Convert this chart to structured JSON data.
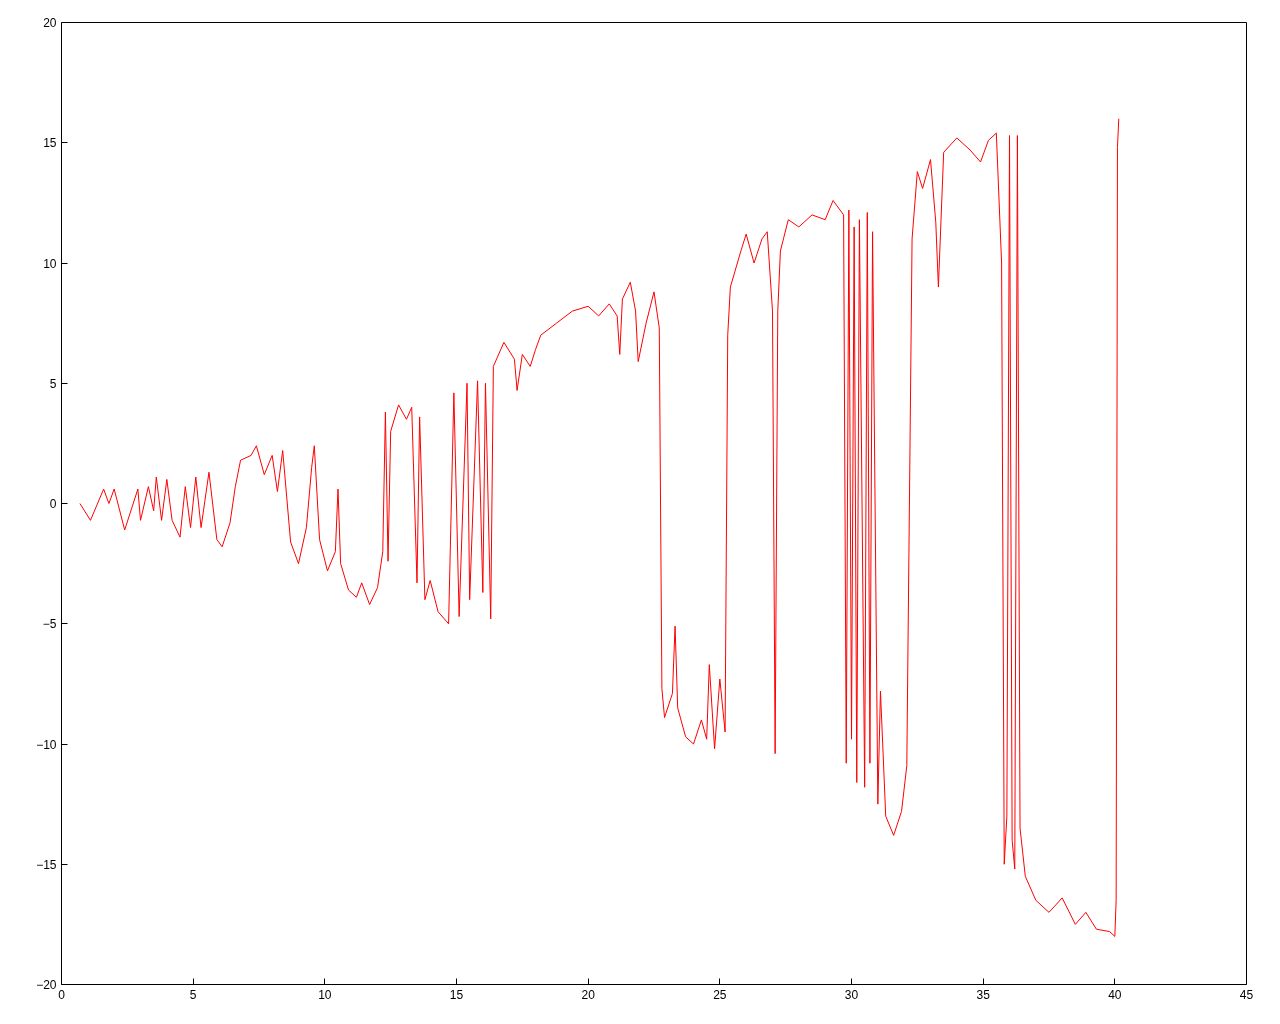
{
  "chart_data": {
    "type": "line",
    "xlim": [
      0,
      45
    ],
    "ylim": [
      -20,
      20
    ],
    "xticks": [
      0,
      5,
      10,
      15,
      20,
      25,
      30,
      35,
      40,
      45
    ],
    "yticks": [
      -20,
      -15,
      -10,
      -5,
      0,
      5,
      10,
      15,
      20
    ],
    "grid": false,
    "marker": "none",
    "line_style": "solid",
    "series": [
      {
        "color": "#ff0000",
        "x": [
          0.7,
          1.1,
          1.6,
          1.8,
          2.0,
          2.4,
          2.9,
          3.0,
          3.3,
          3.5,
          3.6,
          3.8,
          4.0,
          4.2,
          4.5,
          4.7,
          4.9,
          5.1,
          5.3,
          5.6,
          5.9,
          6.1,
          6.4,
          6.6,
          6.8,
          7.2,
          7.4,
          7.7,
          8.0,
          8.2,
          8.4,
          8.7,
          9.0,
          9.3,
          9.5,
          9.6,
          9.8,
          10.1,
          10.4,
          10.5,
          10.6,
          10.9,
          11.2,
          11.4,
          11.7,
          12.0,
          12.2,
          12.3,
          12.4,
          12.5,
          12.8,
          13.1,
          13.3,
          13.5,
          13.6,
          13.8,
          14.0,
          14.3,
          14.7,
          14.9,
          15.1,
          15.4,
          15.5,
          15.8,
          16.0,
          16.1,
          16.3,
          16.4,
          16.8,
          17.2,
          17.3,
          17.5,
          17.8,
          18.0,
          18.2,
          18.8,
          19.4,
          20.0,
          20.4,
          20.8,
          21.1,
          21.2,
          21.3,
          21.6,
          21.8,
          21.9,
          22.2,
          22.5,
          22.7,
          22.8,
          22.9,
          23.2,
          23.3,
          23.4,
          23.7,
          24.0,
          24.3,
          24.5,
          24.6,
          24.8,
          25.0,
          25.2,
          25.3,
          25.4,
          25.8,
          26.0,
          26.3,
          26.6,
          26.8,
          27.0,
          27.1,
          27.2,
          27.3,
          27.6,
          28.0,
          28.5,
          29.0,
          29.3,
          29.7,
          29.8,
          29.9,
          30.0,
          30.1,
          30.2,
          30.3,
          30.5,
          30.6,
          30.7,
          30.8,
          31.0,
          31.1,
          31.3,
          31.6,
          31.9,
          32.1,
          32.3,
          32.5,
          32.7,
          33.0,
          33.2,
          33.3,
          33.5,
          34.0,
          34.5,
          34.9,
          35.2,
          35.5,
          35.7,
          35.8,
          35.9,
          36.0,
          36.1,
          36.2,
          36.3,
          36.4,
          36.6,
          37.0,
          37.5,
          38.0,
          38.5,
          38.9,
          39.3,
          39.8,
          40.0,
          40.05,
          40.1,
          40.15
        ],
        "values": [
          0,
          -0.7,
          0.6,
          0,
          0.6,
          -1.1,
          0.6,
          -0.7,
          0.7,
          -0.3,
          1.1,
          -0.7,
          1.0,
          -0.7,
          -1.4,
          0.7,
          -1.0,
          1.1,
          -1.0,
          1.3,
          -1.5,
          -1.8,
          -0.8,
          0.7,
          1.8,
          2.0,
          2.4,
          1.2,
          2.0,
          0.5,
          2.2,
          -1.6,
          -2.5,
          -1.0,
          1.5,
          2.4,
          -1.5,
          -2.8,
          -2.0,
          0.6,
          -2.5,
          -3.6,
          -3.9,
          -3.3,
          -4.2,
          -3.5,
          -2.0,
          3.8,
          -2.4,
          3.0,
          4.1,
          3.5,
          4.0,
          -3.3,
          3.6,
          -4.0,
          -3.2,
          -4.5,
          -5.0,
          4.6,
          -4.7,
          5.0,
          -4.0,
          5.1,
          -3.7,
          5.0,
          -4.8,
          5.7,
          6.7,
          6.0,
          4.7,
          6.2,
          5.7,
          6.4,
          7.0,
          7.5,
          8.0,
          8.2,
          7.8,
          8.3,
          7.8,
          6.2,
          8.5,
          9.2,
          8.0,
          5.9,
          7.5,
          8.8,
          7.3,
          -7.7,
          -8.9,
          -7.9,
          -5.1,
          -8.5,
          -9.7,
          -10.0,
          -9.0,
          -9.8,
          -6.7,
          -10.2,
          -7.3,
          -9.5,
          7.0,
          9.0,
          10.5,
          11.2,
          10.0,
          11.0,
          11.3,
          8.0,
          -10.4,
          8.0,
          10.5,
          11.8,
          11.5,
          12.0,
          11.8,
          12.6,
          12.0,
          -10.8,
          12.2,
          -9.8,
          11.5,
          -11.6,
          11.8,
          -11.8,
          12.1,
          -10.8,
          11.3,
          -12.5,
          -7.8,
          -13.0,
          -13.8,
          -12.8,
          -10.9,
          11.0,
          13.8,
          13.1,
          14.3,
          11.7,
          9.0,
          14.6,
          15.2,
          14.7,
          14.2,
          15.1,
          15.4,
          10.0,
          -15.0,
          -13.0,
          15.3,
          -14.0,
          -15.2,
          15.3,
          -13.5,
          -15.5,
          -16.5,
          -17.0,
          -16.4,
          -17.5,
          -17.0,
          -17.7,
          -17.8,
          -18.0,
          -16.5,
          14.8,
          16.0
        ]
      }
    ]
  }
}
